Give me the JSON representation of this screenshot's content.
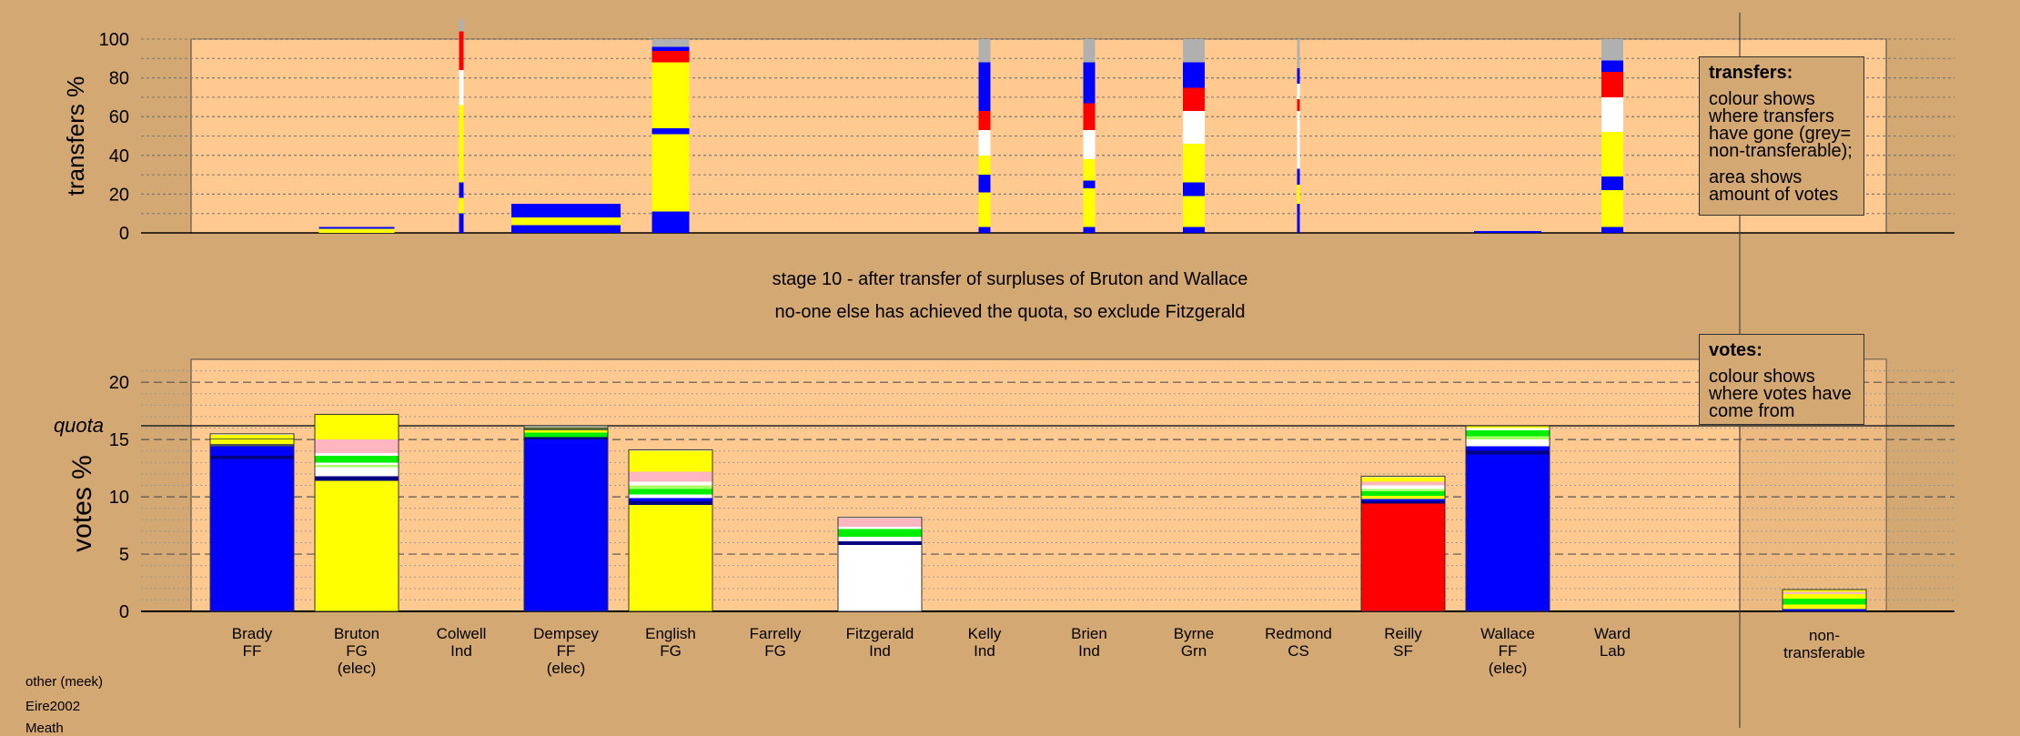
{
  "chart_data": [
    {
      "type": "bar",
      "stacked": true,
      "ylabel": "transfers %",
      "ylim": [
        0,
        100
      ],
      "yticks": [
        0,
        20,
        40,
        60,
        80,
        100
      ],
      "categories": [
        "Brady",
        "Bruton",
        "Colwell",
        "Dempsey",
        "English",
        "Farrelly",
        "Fitzgerald",
        "Kelly",
        "Brien",
        "Byrne",
        "Redmond",
        "Reilly",
        "Wallace",
        "Ward"
      ],
      "note": "bar width shows amount of votes transferred",
      "bars": [
        {
          "category": "Bruton",
          "width": 0.9,
          "segments": [
            {
              "color": "#ffff00",
              "value": 2
            },
            {
              "color": "#0000ff",
              "value": 1
            }
          ]
        },
        {
          "category": "Colwell",
          "width": 0.05,
          "segments": [
            {
              "color": "#0000ff",
              "value": 10
            },
            {
              "color": "#ffff00",
              "value": 8
            },
            {
              "color": "#0000ff",
              "value": 8
            },
            {
              "color": "#ffff00",
              "value": 40
            },
            {
              "color": "#ffffff",
              "value": 18
            },
            {
              "color": "#ff0000",
              "value": 6
            },
            {
              "color": "#ff0000",
              "value": 14
            },
            {
              "color": "#b0b0b0",
              "value": 6
            }
          ]
        },
        {
          "category": "Dempsey",
          "width": 1.3,
          "segments": [
            {
              "color": "#0000ff",
              "value": 4
            },
            {
              "color": "#ffff00",
              "value": 4
            },
            {
              "color": "#0000ff",
              "value": 7
            }
          ]
        },
        {
          "category": "English",
          "width": 0.45,
          "segments": [
            {
              "color": "#0000ff",
              "value": 11
            },
            {
              "color": "#ffff00",
              "value": 40
            },
            {
              "color": "#0000ff",
              "value": 3
            },
            {
              "color": "#ffff00",
              "value": 34
            },
            {
              "color": "#ff0000",
              "value": 6
            },
            {
              "color": "#0000ff",
              "value": 2
            },
            {
              "color": "#b0b0b0",
              "value": 4
            }
          ]
        },
        {
          "category": "Kelly",
          "width": 0.14,
          "segments": [
            {
              "color": "#0000ff",
              "value": 3
            },
            {
              "color": "#ffff00",
              "value": 18
            },
            {
              "color": "#0000ff",
              "value": 9
            },
            {
              "color": "#ffff00",
              "value": 10
            },
            {
              "color": "#ffffff",
              "value": 13
            },
            {
              "color": "#ff0000",
              "value": 10
            },
            {
              "color": "#0000ff",
              "value": 25
            },
            {
              "color": "#b0b0b0",
              "value": 12
            }
          ]
        },
        {
          "category": "Brien",
          "width": 0.14,
          "segments": [
            {
              "color": "#0000ff",
              "value": 3
            },
            {
              "color": "#ffff00",
              "value": 20
            },
            {
              "color": "#0000ff",
              "value": 4
            },
            {
              "color": "#ffff00",
              "value": 11
            },
            {
              "color": "#ffffff",
              "value": 15
            },
            {
              "color": "#ff0000",
              "value": 14
            },
            {
              "color": "#0000ff",
              "value": 21
            },
            {
              "color": "#b0b0b0",
              "value": 12
            }
          ]
        },
        {
          "category": "Byrne",
          "width": 0.26,
          "segments": [
            {
              "color": "#0000ff",
              "value": 3
            },
            {
              "color": "#ffff00",
              "value": 16
            },
            {
              "color": "#0000ff",
              "value": 7
            },
            {
              "color": "#ffff00",
              "value": 20
            },
            {
              "color": "#ffffff",
              "value": 17
            },
            {
              "color": "#ff0000",
              "value": 12
            },
            {
              "color": "#0000ff",
              "value": 13
            },
            {
              "color": "#b0b0b0",
              "value": 12
            }
          ]
        },
        {
          "category": "Redmond",
          "width": 0.03,
          "segments": [
            {
              "color": "#0000ff",
              "value": 15
            },
            {
              "color": "#ffff00",
              "value": 10
            },
            {
              "color": "#0000ff",
              "value": 8
            },
            {
              "color": "#ffffff",
              "value": 30
            },
            {
              "color": "#ff0000",
              "value": 6
            },
            {
              "color": "#ffffff",
              "value": 8
            },
            {
              "color": "#0000ff",
              "value": 8
            },
            {
              "color": "#b0b0b0",
              "value": 15
            }
          ]
        },
        {
          "category": "Wallace",
          "width": 0.8,
          "segments": [
            {
              "color": "#0000ff",
              "value": 1
            }
          ]
        },
        {
          "category": "Ward",
          "width": 0.26,
          "segments": [
            {
              "color": "#0000ff",
              "value": 3
            },
            {
              "color": "#ffff00",
              "value": 19
            },
            {
              "color": "#0000ff",
              "value": 7
            },
            {
              "color": "#ffff00",
              "value": 23
            },
            {
              "color": "#ffffff",
              "value": 18
            },
            {
              "color": "#ff0000",
              "value": 13
            },
            {
              "color": "#0000ff",
              "value": 6
            },
            {
              "color": "#b0b0b0",
              "value": 11
            }
          ]
        }
      ],
      "legend": {
        "title": "transfers:",
        "text1": "colour shows where transfers have gone (grey= non-transferable);",
        "text2": "area shows amount of votes"
      }
    },
    {
      "type": "bar",
      "stacked": true,
      "ylabel": "votes %",
      "ylim": [
        0,
        22
      ],
      "yticks": [
        0,
        5,
        10,
        15,
        20
      ],
      "quota": 16.2,
      "quota_label": "quota",
      "categories": [
        "Brady",
        "Bruton",
        "Colwell",
        "Dempsey",
        "English",
        "Farrelly",
        "Fitzgerald",
        "Kelly",
        "Brien",
        "Byrne",
        "Redmond",
        "Reilly",
        "Wallace",
        "Ward",
        "non-transferable"
      ],
      "bars": [
        {
          "category": "Brady",
          "segments": [
            {
              "color": "#0000ff",
              "value": 13.3
            },
            {
              "color": "#000080",
              "value": 0.3
            },
            {
              "color": "#0000ff",
              "value": 0.8
            },
            {
              "color": "#555555",
              "value": 0.2
            },
            {
              "color": "#ffff00",
              "value": 0.4
            },
            {
              "color": "#556b2f",
              "value": 0.1
            },
            {
              "color": "#ffff00",
              "value": 0.3
            },
            {
              "color": "#ffffff",
              "value": 0.1
            }
          ]
        },
        {
          "category": "Bruton",
          "segments": [
            {
              "color": "#ffff00",
              "value": 11.4
            },
            {
              "color": "#000080",
              "value": 0.4
            },
            {
              "color": "#ffffff",
              "value": 0.8
            },
            {
              "color": "#aaff66",
              "value": 0.2
            },
            {
              "color": "#ffffff",
              "value": 0.2
            },
            {
              "color": "#00ee00",
              "value": 0.6
            },
            {
              "color": "#ffffff",
              "value": 0.2
            },
            {
              "color": "#ffb6c1",
              "value": 1.2
            },
            {
              "color": "#ffff00",
              "value": 2.2
            }
          ]
        },
        {
          "category": "Colwell",
          "segments": []
        },
        {
          "category": "Dempsey",
          "segments": [
            {
              "color": "#0000ff",
              "value": 15.0
            },
            {
              "color": "#000080",
              "value": 0.2
            },
            {
              "color": "#00ee00",
              "value": 0.4
            },
            {
              "color": "#ffff00",
              "value": 0.2
            },
            {
              "color": "#556b2f",
              "value": 0.3
            },
            {
              "color": "#ffffff",
              "value": 0.1
            }
          ]
        },
        {
          "category": "English",
          "segments": [
            {
              "color": "#ffff00",
              "value": 9.3
            },
            {
              "color": "#000080",
              "value": 0.3
            },
            {
              "color": "#0000ff",
              "value": 0.3
            },
            {
              "color": "#ffffff",
              "value": 0.3
            },
            {
              "color": "#00ee00",
              "value": 0.5
            },
            {
              "color": "#aaff66",
              "value": 0.3
            },
            {
              "color": "#ffffff",
              "value": 0.3
            },
            {
              "color": "#ffb6c1",
              "value": 0.9
            },
            {
              "color": "#ffff00",
              "value": 1.8
            },
            {
              "color": "#ffffff",
              "value": 0.1
            }
          ]
        },
        {
          "category": "Farrelly",
          "segments": []
        },
        {
          "category": "Fitzgerald",
          "segments": [
            {
              "color": "#ffffff",
              "value": 5.8
            },
            {
              "color": "#000080",
              "value": 0.3
            },
            {
              "color": "#ffffff",
              "value": 0.4
            },
            {
              "color": "#00ee00",
              "value": 0.7
            },
            {
              "color": "#ffffff",
              "value": 0.2
            },
            {
              "color": "#ffb6c1",
              "value": 0.7
            },
            {
              "color": "#ffffff",
              "value": 0.1
            }
          ]
        },
        {
          "category": "Kelly",
          "segments": []
        },
        {
          "category": "Brien",
          "segments": []
        },
        {
          "category": "Byrne",
          "segments": []
        },
        {
          "category": "Redmond",
          "segments": []
        },
        {
          "category": "Reilly",
          "segments": [
            {
              "color": "#ff0000",
              "value": 9.4
            },
            {
              "color": "#000080",
              "value": 0.2
            },
            {
              "color": "#0000ff",
              "value": 0.2
            },
            {
              "color": "#ffff00",
              "value": 0.3
            },
            {
              "color": "#00ee00",
              "value": 0.4
            },
            {
              "color": "#aaff66",
              "value": 0.2
            },
            {
              "color": "#ffffff",
              "value": 0.3
            },
            {
              "color": "#ffb6c1",
              "value": 0.3
            },
            {
              "color": "#ffff00",
              "value": 0.4
            },
            {
              "color": "#ffffff",
              "value": 0.1
            }
          ]
        },
        {
          "category": "Wallace",
          "segments": [
            {
              "color": "#0000ff",
              "value": 13.7
            },
            {
              "color": "#000080",
              "value": 0.3
            },
            {
              "color": "#0000ff",
              "value": 0.4
            },
            {
              "color": "#ffffff",
              "value": 0.6
            },
            {
              "color": "#aaff66",
              "value": 0.3
            },
            {
              "color": "#00ee00",
              "value": 0.5
            },
            {
              "color": "#ffffff",
              "value": 0.2
            },
            {
              "color": "#ffff00",
              "value": 0.2
            }
          ]
        },
        {
          "category": "Ward",
          "segments": []
        },
        {
          "category": "non-transferable",
          "segments": [
            {
              "color": "#0000ff",
              "value": 0.2
            },
            {
              "color": "#ffff00",
              "value": 0.4
            },
            {
              "color": "#00ee00",
              "value": 0.5
            },
            {
              "color": "#ffff00",
              "value": 0.4
            },
            {
              "color": "#ffb6c1",
              "value": 0.2
            },
            {
              "color": "#ffff00",
              "value": 0.2
            }
          ]
        }
      ],
      "legend": {
        "title": "votes:",
        "text": "colour shows where votes have come from"
      }
    }
  ],
  "candidates": [
    {
      "name": "Brady",
      "party": "FF",
      "status": ""
    },
    {
      "name": "Bruton",
      "party": "FG",
      "status": "(elec)"
    },
    {
      "name": "Colwell",
      "party": "Ind",
      "status": ""
    },
    {
      "name": "Dempsey",
      "party": "FF",
      "status": "(elec)"
    },
    {
      "name": "English",
      "party": "FG",
      "status": ""
    },
    {
      "name": "Farrelly",
      "party": "FG",
      "status": ""
    },
    {
      "name": "Fitzgerald",
      "party": "Ind",
      "status": ""
    },
    {
      "name": "Kelly",
      "party": "Ind",
      "status": ""
    },
    {
      "name": "Brien",
      "party": "Ind",
      "status": ""
    },
    {
      "name": "Byrne",
      "party": "Grn",
      "status": ""
    },
    {
      "name": "Redmond",
      "party": "CS",
      "status": ""
    },
    {
      "name": "Reilly",
      "party": "SF",
      "status": ""
    },
    {
      "name": "Wallace",
      "party": "FF",
      "status": "(elec)"
    },
    {
      "name": "Ward",
      "party": "Lab",
      "status": ""
    }
  ],
  "nontransferable": {
    "line1": "non-",
    "line2": "transferable"
  },
  "captions": {
    "line1": "stage 10 - after transfer of surpluses of Bruton and Wallace",
    "line2": "no-one else has achieved the quota, so exclude Fitzgerald"
  },
  "meta": {
    "line1": "other (meek)",
    "line2": "Eire2002",
    "line3": "Meath"
  }
}
